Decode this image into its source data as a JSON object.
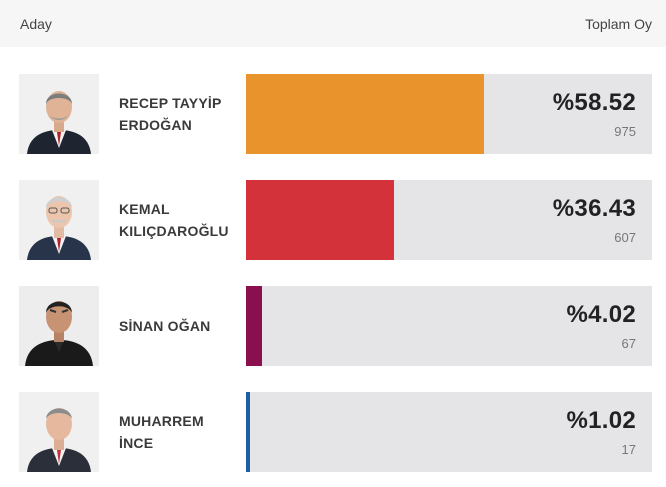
{
  "header": {
    "candidate_label": "Aday",
    "total_label": "Toplam Oy"
  },
  "candidates": [
    {
      "name": "RECEP TAYYİP\nERDOĞAN",
      "percent_label": "%58.52",
      "percent": 58.52,
      "votes": "975",
      "color": "#e9932d",
      "photo_icon": "candidate-photo"
    },
    {
      "name": "KEMAL\nKILIÇDAROĞLU",
      "percent_label": "%36.43",
      "percent": 36.43,
      "votes": "607",
      "color": "#d3323a",
      "photo_icon": "candidate-photo"
    },
    {
      "name": "SİNAN OĞAN",
      "percent_label": "%4.02",
      "percent": 4.02,
      "votes": "67",
      "color": "#8a0f4f",
      "photo_icon": "candidate-photo"
    },
    {
      "name": "MUHARREM\nİNCE",
      "percent_label": "%1.02",
      "percent": 1.02,
      "votes": "17",
      "color": "#1f5fa8",
      "photo_icon": "candidate-photo"
    }
  ]
}
